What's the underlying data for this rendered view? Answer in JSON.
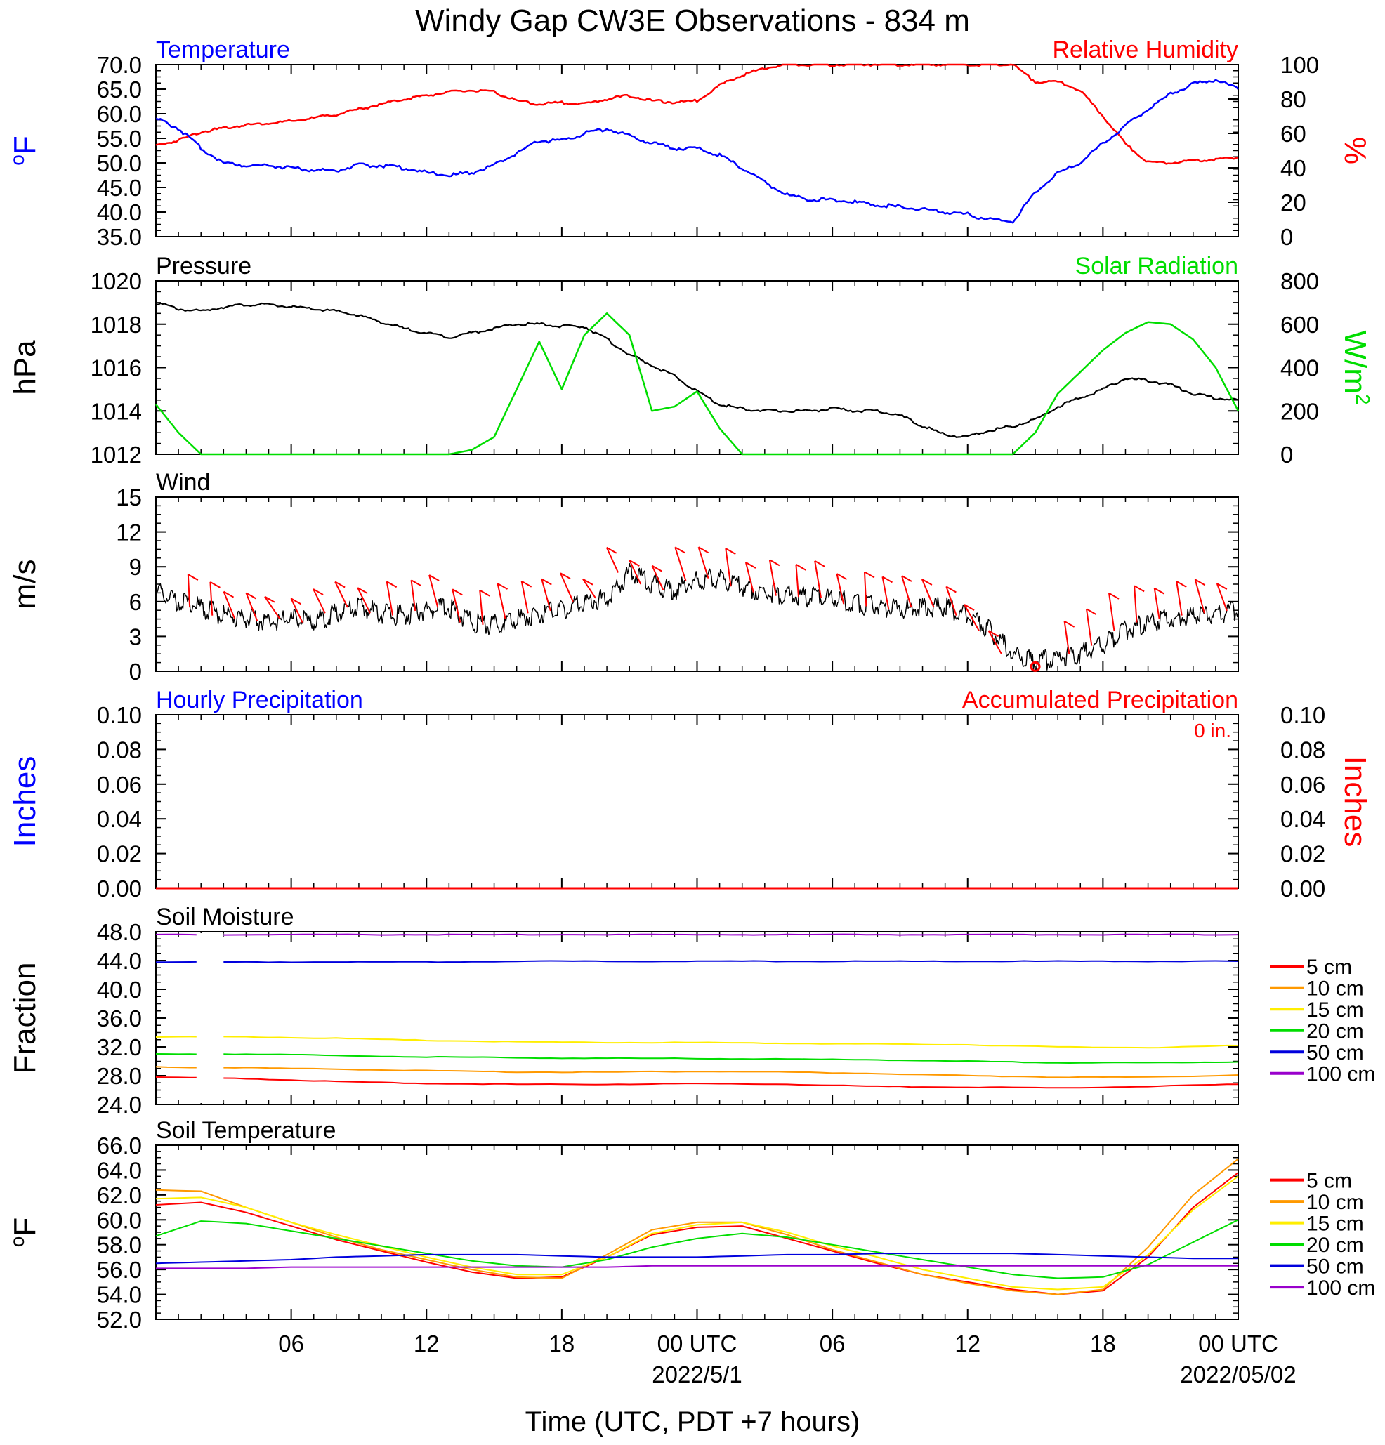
{
  "title": "Windy Gap CW3E Observations - 834 m",
  "xlabel": "Time (UTC, PDT +7 hours)",
  "x_ticks": [
    {
      "hour": 6,
      "label": "06",
      "sub": ""
    },
    {
      "hour": 12,
      "label": "12",
      "sub": ""
    },
    {
      "hour": 18,
      "label": "18",
      "sub": ""
    },
    {
      "hour": 24,
      "label": "00 UTC",
      "sub": "2022/5/1"
    },
    {
      "hour": 30,
      "label": "06",
      "sub": ""
    },
    {
      "hour": 36,
      "label": "12",
      "sub": ""
    },
    {
      "hour": 42,
      "label": "18",
      "sub": ""
    },
    {
      "hour": 48,
      "label": "00 UTC",
      "sub": "2022/05/02"
    }
  ],
  "colors": {
    "blue": "#0000ff",
    "red": "#ff0000",
    "green": "#00dd00",
    "black": "#000000",
    "orange": "#ff9900",
    "yellow": "#ffee00",
    "purple": "#9900cc"
  },
  "chart_data": [
    {
      "type": "line",
      "title_left": "Temperature",
      "title_right": "Relative Humidity",
      "ylabel_left": "oF",
      "ylabel_right": "%",
      "ylim_left": [
        35,
        70
      ],
      "ylim_right": [
        0,
        100
      ],
      "left_ticks": [
        "35.0",
        "40.0",
        "45.0",
        "50.0",
        "55.0",
        "60.0",
        "65.0",
        "70.0"
      ],
      "right_ticks": [
        "0",
        "20",
        "40",
        "60",
        "80",
        "100"
      ],
      "x": [
        0,
        1,
        2,
        3,
        4,
        5,
        6,
        7,
        8,
        9,
        10,
        11,
        12,
        13,
        14,
        15,
        16,
        17,
        18,
        19,
        20,
        21,
        22,
        23,
        24,
        25,
        26,
        27,
        28,
        29,
        30,
        31,
        32,
        33,
        34,
        35,
        36,
        37,
        38,
        39,
        40,
        41,
        42,
        43,
        44,
        45,
        46,
        47,
        48
      ],
      "series": [
        {
          "name": "Temperature",
          "axis": "left",
          "color": "#0000ff",
          "values": [
            59,
            57,
            53,
            50,
            49.5,
            49.5,
            49,
            48.5,
            48.5,
            49.5,
            49.5,
            49,
            48,
            47.5,
            48,
            49.5,
            52,
            54.5,
            54.5,
            56,
            57,
            55.5,
            54,
            53,
            53,
            51.5,
            49,
            46,
            43.5,
            42.5,
            42.5,
            42,
            41.5,
            41,
            40.5,
            40,
            39.5,
            38.5,
            38,
            44,
            48,
            50,
            54,
            57.5,
            61,
            64,
            66,
            67,
            65
          ]
        },
        {
          "name": "Relative Humidity",
          "axis": "right",
          "color": "#ff0000",
          "values": [
            53,
            56,
            61,
            63,
            65,
            66,
            67,
            69,
            71,
            74,
            77,
            80,
            82,
            84,
            85,
            84,
            79,
            77,
            78,
            77,
            80,
            82,
            79,
            78,
            79,
            88,
            94,
            98,
            100,
            100,
            100,
            100,
            100,
            100,
            100,
            100,
            100,
            100,
            100,
            90,
            90,
            85,
            70,
            54,
            43,
            43,
            44,
            45,
            46
          ]
        }
      ]
    },
    {
      "type": "line",
      "title_left": "Pressure",
      "title_right": "Solar Radiation",
      "ylabel_left": "hPa",
      "ylabel_right": "W/m2",
      "ylim_left": [
        1012,
        1020
      ],
      "ylim_right": [
        0,
        800
      ],
      "left_ticks": [
        "1012",
        "1014",
        "1016",
        "1018",
        "1020"
      ],
      "right_ticks": [
        "0",
        "200",
        "400",
        "600",
        "800"
      ],
      "x": [
        0,
        1,
        2,
        3,
        4,
        5,
        6,
        7,
        8,
        9,
        10,
        11,
        12,
        13,
        14,
        15,
        16,
        17,
        18,
        19,
        20,
        21,
        22,
        23,
        24,
        25,
        26,
        27,
        28,
        29,
        30,
        31,
        32,
        33,
        34,
        35,
        36,
        37,
        38,
        39,
        40,
        41,
        42,
        43,
        44,
        45,
        46,
        47,
        48
      ],
      "series": [
        {
          "name": "Pressure",
          "axis": "left",
          "color": "#000000",
          "values": [
            1019,
            1018.7,
            1018.6,
            1018.8,
            1018.9,
            1018.9,
            1018.8,
            1018.7,
            1018.6,
            1018.4,
            1018.1,
            1017.8,
            1017.6,
            1017.4,
            1017.6,
            1017.8,
            1018,
            1018,
            1017.9,
            1017.9,
            1017.3,
            1016.6,
            1016.1,
            1015.6,
            1014.9,
            1014.3,
            1014.1,
            1014,
            1014,
            1014,
            1014.1,
            1014,
            1014,
            1013.8,
            1013.3,
            1012.9,
            1012.8,
            1013.1,
            1013.3,
            1013.6,
            1014.2,
            1014.6,
            1015,
            1015.5,
            1015.4,
            1015.2,
            1014.8,
            1014.6,
            1014.5
          ]
        },
        {
          "name": "Solar Radiation",
          "axis": "right",
          "color": "#00dd00",
          "values": [
            230,
            100,
            0,
            0,
            0,
            0,
            0,
            0,
            0,
            0,
            0,
            0,
            0,
            0,
            20,
            80,
            300,
            520,
            300,
            550,
            650,
            550,
            200,
            220,
            290,
            120,
            0,
            0,
            0,
            0,
            0,
            0,
            0,
            0,
            0,
            0,
            0,
            0,
            0,
            100,
            280,
            380,
            480,
            560,
            610,
            600,
            530,
            400,
            200
          ]
        }
      ]
    },
    {
      "type": "line",
      "title_left": "Wind",
      "ylabel_left": "m/s",
      "ylim_left": [
        0,
        15
      ],
      "left_ticks": [
        "0",
        "3",
        "6",
        "9",
        "12",
        "15"
      ],
      "x": [
        0,
        1,
        2,
        3,
        4,
        5,
        6,
        7,
        8,
        9,
        10,
        11,
        12,
        13,
        14,
        15,
        16,
        17,
        18,
        19,
        20,
        21,
        22,
        23,
        24,
        25,
        26,
        27,
        28,
        29,
        30,
        31,
        32,
        33,
        34,
        35,
        36,
        37,
        38,
        39,
        40,
        41,
        42,
        43,
        44,
        45,
        46,
        47,
        48
      ],
      "series": [
        {
          "name": "Wind speed",
          "axis": "left",
          "color": "#000000",
          "values": [
            6.8,
            6,
            5.5,
            4.8,
            4.5,
            4.3,
            4.5,
            4.2,
            5,
            5.5,
            5,
            4.8,
            5.2,
            5.5,
            4.2,
            4,
            4.5,
            5,
            5.2,
            6,
            6.3,
            8.5,
            7.5,
            7,
            7.8,
            8,
            7.3,
            6.8,
            6.5,
            6.4,
            6.3,
            5.8,
            5.6,
            5.3,
            5.5,
            5.5,
            4.8,
            3.5,
            1.5,
            0.8,
            1.2,
            1.5,
            2.2,
            3.5,
            4.2,
            4.5,
            4.8,
            5,
            5.2
          ]
        }
      ],
      "barbs_hours": [
        1.5,
        2.5,
        3.5,
        4.5,
        5.5,
        6.5,
        7.5,
        8.5,
        9.5,
        10.5,
        11.5,
        12.5,
        13.5,
        14.5,
        15.5,
        16.5,
        17.5,
        18.5,
        19.5,
        20.5,
        21.5,
        22.5,
        23.5,
        24.5,
        25.5,
        26.5,
        27.5,
        28.5,
        29.5,
        30.5,
        31.5,
        32.5,
        33.5,
        34.5,
        35.5,
        36.5,
        37.5,
        38.5,
        39.5,
        40.5,
        41.5,
        42.5,
        43.5,
        44.5,
        45.5,
        46.5,
        47.5
      ],
      "calm_hour": 39
    },
    {
      "type": "line",
      "title_left": "Hourly Precipitation",
      "title_right": "Accumulated Precipitation",
      "annotation": "0 in.",
      "ylabel_left": "Inches",
      "ylabel_right": "Inches",
      "ylim_left": [
        0,
        0.1
      ],
      "ylim_right": [
        0,
        0.1
      ],
      "left_ticks": [
        "0.00",
        "0.02",
        "0.04",
        "0.06",
        "0.08",
        "0.10"
      ],
      "right_ticks": [
        "0.00",
        "0.02",
        "0.04",
        "0.06",
        "0.08",
        "0.10"
      ],
      "x": [
        0,
        48
      ],
      "series": [
        {
          "name": "Hourly Precipitation",
          "axis": "left",
          "color": "#0000ff",
          "values": [
            0,
            0
          ]
        },
        {
          "name": "Accumulated Precipitation",
          "axis": "right",
          "color": "#ff0000",
          "values": [
            0,
            0
          ]
        }
      ]
    },
    {
      "type": "line",
      "title_left": "Soil Moisture",
      "ylabel_left": "Fraction",
      "ylim_left": [
        24,
        48
      ],
      "left_ticks": [
        "24.0",
        "28.0",
        "32.0",
        "36.0",
        "40.0",
        "44.0",
        "48.0"
      ],
      "x": [
        0,
        4,
        8,
        12,
        16,
        20,
        24,
        28,
        32,
        36,
        40,
        44,
        48
      ],
      "legend": [
        "5 cm",
        "10 cm",
        "15 cm",
        "20 cm",
        "50 cm",
        "100 cm"
      ],
      "series": [
        {
          "name": "5 cm",
          "axis": "left",
          "color": "#ff0000",
          "values": [
            27.8,
            27.6,
            27.2,
            26.9,
            26.8,
            26.8,
            26.9,
            26.8,
            26.5,
            26.4,
            26.3,
            26.5,
            26.8
          ]
        },
        {
          "name": "10 cm",
          "axis": "left",
          "color": "#ff9900",
          "values": [
            29.2,
            29.1,
            28.9,
            28.7,
            28.5,
            28.5,
            28.6,
            28.5,
            28.3,
            28.0,
            27.8,
            27.8,
            28.1
          ]
        },
        {
          "name": "15 cm",
          "axis": "left",
          "color": "#ffee00",
          "values": [
            33.4,
            33.4,
            33.2,
            32.9,
            32.7,
            32.6,
            32.6,
            32.5,
            32.4,
            32.3,
            32.0,
            31.9,
            32.2
          ]
        },
        {
          "name": "20 cm",
          "axis": "left",
          "color": "#00dd00",
          "values": [
            31.0,
            31.0,
            30.8,
            30.6,
            30.5,
            30.4,
            30.4,
            30.3,
            30.2,
            30.0,
            29.8,
            29.8,
            29.9
          ]
        },
        {
          "name": "50 cm",
          "axis": "left",
          "color": "#0000dd",
          "values": [
            43.8,
            43.8,
            43.8,
            43.8,
            43.9,
            43.9,
            43.9,
            43.9,
            43.9,
            43.9,
            43.9,
            43.9,
            43.9
          ]
        },
        {
          "name": "100 cm",
          "axis": "left",
          "color": "#9900cc",
          "values": [
            47.6,
            47.6,
            47.6,
            47.6,
            47.6,
            47.6,
            47.6,
            47.6,
            47.6,
            47.6,
            47.6,
            47.6,
            47.6
          ]
        }
      ]
    },
    {
      "type": "line",
      "title_left": "Soil Temperature",
      "ylabel_left": "oF",
      "ylim_left": [
        52,
        66
      ],
      "left_ticks": [
        "52.0",
        "54.0",
        "56.0",
        "58.0",
        "60.0",
        "62.0",
        "64.0",
        "66.0"
      ],
      "x": [
        0,
        2,
        4,
        6,
        8,
        10,
        12,
        14,
        16,
        18,
        20,
        22,
        24,
        26,
        28,
        30,
        32,
        34,
        36,
        38,
        40,
        42,
        44,
        46,
        48
      ],
      "legend": [
        "5 cm",
        "10 cm",
        "15 cm",
        "20 cm",
        "50 cm",
        "100 cm"
      ],
      "series": [
        {
          "name": "5 cm",
          "axis": "left",
          "color": "#ff0000",
          "values": [
            61.2,
            61.4,
            60.6,
            59.5,
            58.4,
            57.5,
            56.6,
            55.8,
            55.3,
            55.4,
            57.0,
            58.8,
            59.4,
            59.5,
            58.5,
            57.5,
            56.5,
            55.6,
            55.0,
            54.4,
            54.0,
            54.3,
            57.0,
            61.0,
            63.8
          ]
        },
        {
          "name": "10 cm",
          "axis": "left",
          "color": "#ff9900",
          "values": [
            62.4,
            62.3,
            61.0,
            59.8,
            58.6,
            57.6,
            56.8,
            56.0,
            55.4,
            55.3,
            57.2,
            59.2,
            59.8,
            59.8,
            58.8,
            57.6,
            56.6,
            55.6,
            54.9,
            54.3,
            54.0,
            54.4,
            57.8,
            62.0,
            64.9
          ]
        },
        {
          "name": "15 cm",
          "axis": "left",
          "color": "#ffee00",
          "values": [
            61.7,
            61.8,
            61.0,
            59.8,
            58.8,
            57.9,
            57.0,
            56.2,
            55.6,
            55.6,
            57.0,
            58.9,
            59.6,
            59.8,
            59.0,
            57.9,
            57.0,
            56.0,
            55.3,
            54.6,
            54.4,
            54.6,
            57.2,
            60.8,
            63.5
          ]
        },
        {
          "name": "20 cm",
          "axis": "left",
          "color": "#00dd00",
          "values": [
            58.7,
            59.9,
            59.7,
            59.1,
            58.5,
            57.9,
            57.3,
            56.7,
            56.3,
            56.2,
            56.8,
            57.8,
            58.5,
            58.9,
            58.6,
            58.0,
            57.4,
            56.8,
            56.2,
            55.6,
            55.3,
            55.4,
            56.4,
            58.2,
            60.0
          ]
        },
        {
          "name": "50 cm",
          "axis": "left",
          "color": "#0000dd",
          "values": [
            56.5,
            56.6,
            56.7,
            56.8,
            57.0,
            57.1,
            57.2,
            57.2,
            57.2,
            57.1,
            57.0,
            57.0,
            57.0,
            57.1,
            57.2,
            57.2,
            57.3,
            57.3,
            57.3,
            57.3,
            57.2,
            57.1,
            57.0,
            56.9,
            56.9
          ]
        },
        {
          "name": "100 cm",
          "axis": "left",
          "color": "#9900cc",
          "values": [
            56.1,
            56.1,
            56.1,
            56.2,
            56.2,
            56.2,
            56.2,
            56.2,
            56.2,
            56.2,
            56.2,
            56.3,
            56.3,
            56.3,
            56.3,
            56.3,
            56.3,
            56.3,
            56.3,
            56.3,
            56.3,
            56.3,
            56.3,
            56.3,
            56.3
          ]
        }
      ]
    }
  ]
}
